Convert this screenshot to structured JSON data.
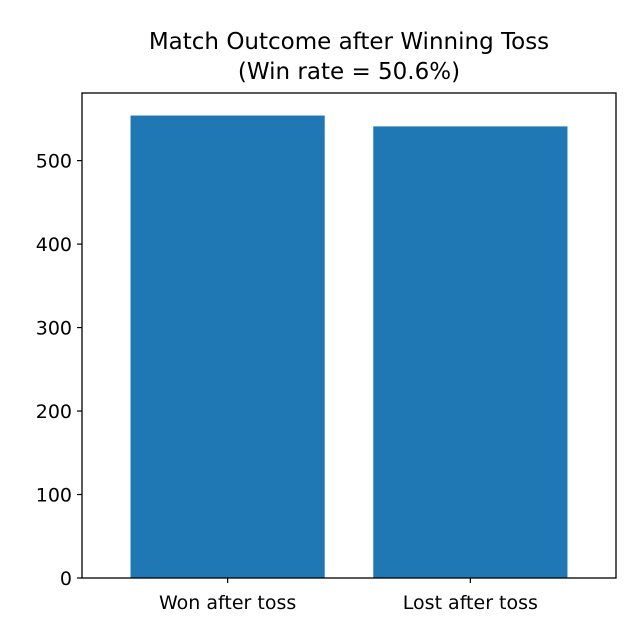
{
  "chart_data": {
    "type": "bar",
    "title": "Match Outcome after Winning Toss",
    "subtitle": "(Win rate = 50.6%)",
    "xlabel": "",
    "ylabel": "",
    "categories": [
      "Won after toss",
      "Lost after toss"
    ],
    "values": [
      554,
      541
    ],
    "ylim": [
      0,
      581
    ],
    "yticks": [
      0,
      100,
      200,
      300,
      400,
      500
    ],
    "grid": false,
    "legend": "none",
    "bar_color": "#1f77b4"
  }
}
